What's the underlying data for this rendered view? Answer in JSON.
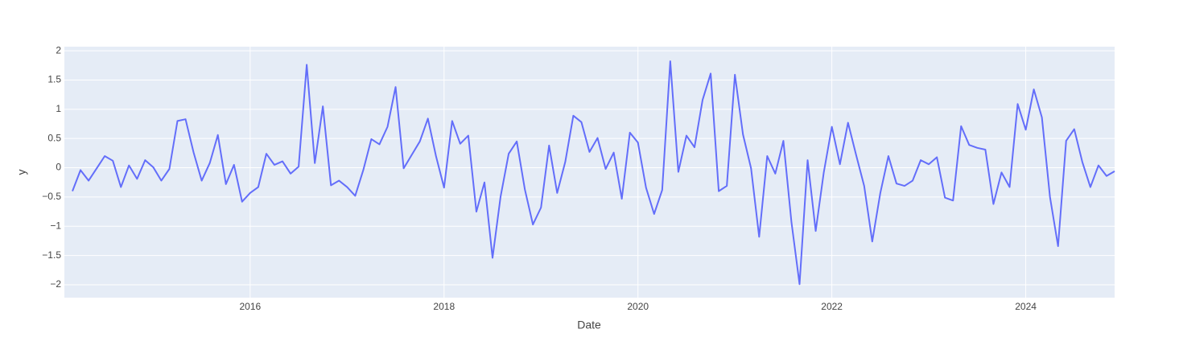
{
  "chart_data": {
    "type": "line",
    "x_label": "Date",
    "y_label": "y",
    "x": [
      "2014-03",
      "2014-04",
      "2014-05",
      "2014-06",
      "2014-07",
      "2014-08",
      "2014-09",
      "2014-10",
      "2014-11",
      "2014-12",
      "2015-01",
      "2015-02",
      "2015-03",
      "2015-04",
      "2015-05",
      "2015-06",
      "2015-07",
      "2015-08",
      "2015-09",
      "2015-10",
      "2015-11",
      "2015-12",
      "2016-01",
      "2016-02",
      "2016-03",
      "2016-04",
      "2016-05",
      "2016-06",
      "2016-07",
      "2016-08",
      "2016-09",
      "2016-10",
      "2016-11",
      "2016-12",
      "2017-01",
      "2017-02",
      "2017-03",
      "2017-04",
      "2017-05",
      "2017-06",
      "2017-07",
      "2017-08",
      "2017-09",
      "2017-10",
      "2017-11",
      "2017-12",
      "2018-01",
      "2018-02",
      "2018-03",
      "2018-04",
      "2018-05",
      "2018-06",
      "2018-07",
      "2018-08",
      "2018-09",
      "2018-10",
      "2018-11",
      "2018-12",
      "2019-01",
      "2019-02",
      "2019-03",
      "2019-04",
      "2019-05",
      "2019-06",
      "2019-07",
      "2019-08",
      "2019-09",
      "2019-10",
      "2019-11",
      "2019-12",
      "2020-01",
      "2020-02",
      "2020-03",
      "2020-04",
      "2020-05",
      "2020-06",
      "2020-07",
      "2020-08",
      "2020-09",
      "2020-10",
      "2020-11",
      "2020-12",
      "2021-01",
      "2021-02",
      "2021-03",
      "2021-04",
      "2021-05",
      "2021-06",
      "2021-07",
      "2021-08",
      "2021-09",
      "2021-10",
      "2021-11",
      "2021-12",
      "2022-01",
      "2022-02",
      "2022-03",
      "2022-04",
      "2022-05",
      "2022-06",
      "2022-07",
      "2022-08",
      "2022-09",
      "2022-10",
      "2022-11",
      "2022-12",
      "2023-01",
      "2023-02",
      "2023-03",
      "2023-04",
      "2023-05",
      "2023-06",
      "2023-07",
      "2023-08",
      "2023-09",
      "2023-10",
      "2023-11",
      "2023-12",
      "2024-01",
      "2024-02",
      "2024-03",
      "2024-04",
      "2024-05",
      "2024-06",
      "2024-07",
      "2024-08",
      "2024-09",
      "2024-10",
      "2024-11",
      "2024-12"
    ],
    "series": [
      {
        "color": "#636efa",
        "values": [
          -0.4,
          -0.04,
          -0.22,
          -0.01,
          0.2,
          0.12,
          -0.33,
          0.04,
          -0.19,
          0.13,
          0.01,
          -0.22,
          -0.02,
          0.8,
          0.83,
          0.26,
          -0.22,
          0.08,
          0.56,
          -0.28,
          0.05,
          -0.58,
          -0.43,
          -0.33,
          0.24,
          0.05,
          0.11,
          -0.1,
          0.02,
          1.76,
          0.08,
          1.05,
          -0.3,
          -0.22,
          -0.33,
          -0.48,
          -0.04,
          0.49,
          0.4,
          0.7,
          1.38,
          -0.01,
          0.22,
          0.45,
          0.84,
          0.2,
          -0.34,
          0.8,
          0.41,
          0.55,
          -0.75,
          -0.25,
          -1.54,
          -0.49,
          0.24,
          0.45,
          -0.37,
          -0.97,
          -0.68,
          0.38,
          -0.43,
          0.1,
          0.89,
          0.78,
          0.27,
          0.51,
          -0.02,
          0.26,
          -0.53,
          0.6,
          0.43,
          -0.34,
          -0.79,
          -0.38,
          1.82,
          -0.07,
          0.55,
          0.35,
          1.16,
          1.61,
          -0.4,
          -0.31,
          1.59,
          0.57,
          -0.01,
          -1.18,
          0.2,
          -0.1,
          0.46,
          -0.93,
          -1.99,
          0.13,
          -1.08,
          -0.08,
          0.7,
          0.06,
          0.77,
          0.22,
          -0.31,
          -1.26,
          -0.43,
          0.2,
          -0.27,
          -0.31,
          -0.22,
          0.13,
          0.06,
          0.18,
          -0.51,
          -0.56,
          0.71,
          0.39,
          0.34,
          0.31,
          -0.62,
          -0.08,
          -0.33,
          1.09,
          0.65,
          1.34,
          0.86,
          -0.5,
          -1.34,
          0.46,
          0.66,
          0.1,
          -0.33,
          0.04,
          -0.14,
          -0.06
        ]
      }
    ],
    "xlim": [
      "2014-03",
      "2024-12"
    ],
    "xticks": [
      "2016",
      "2018",
      "2020",
      "2022",
      "2024"
    ],
    "ylim": [
      -2.22,
      2.07
    ],
    "yticks": [
      {
        "value": -2,
        "label": "−2"
      },
      {
        "value": -1.5,
        "label": "−1.5"
      },
      {
        "value": -1,
        "label": "−1"
      },
      {
        "value": -0.5,
        "label": "−0.5"
      },
      0,
      0.5,
      1,
      1.5,
      2
    ],
    "grid": true
  }
}
